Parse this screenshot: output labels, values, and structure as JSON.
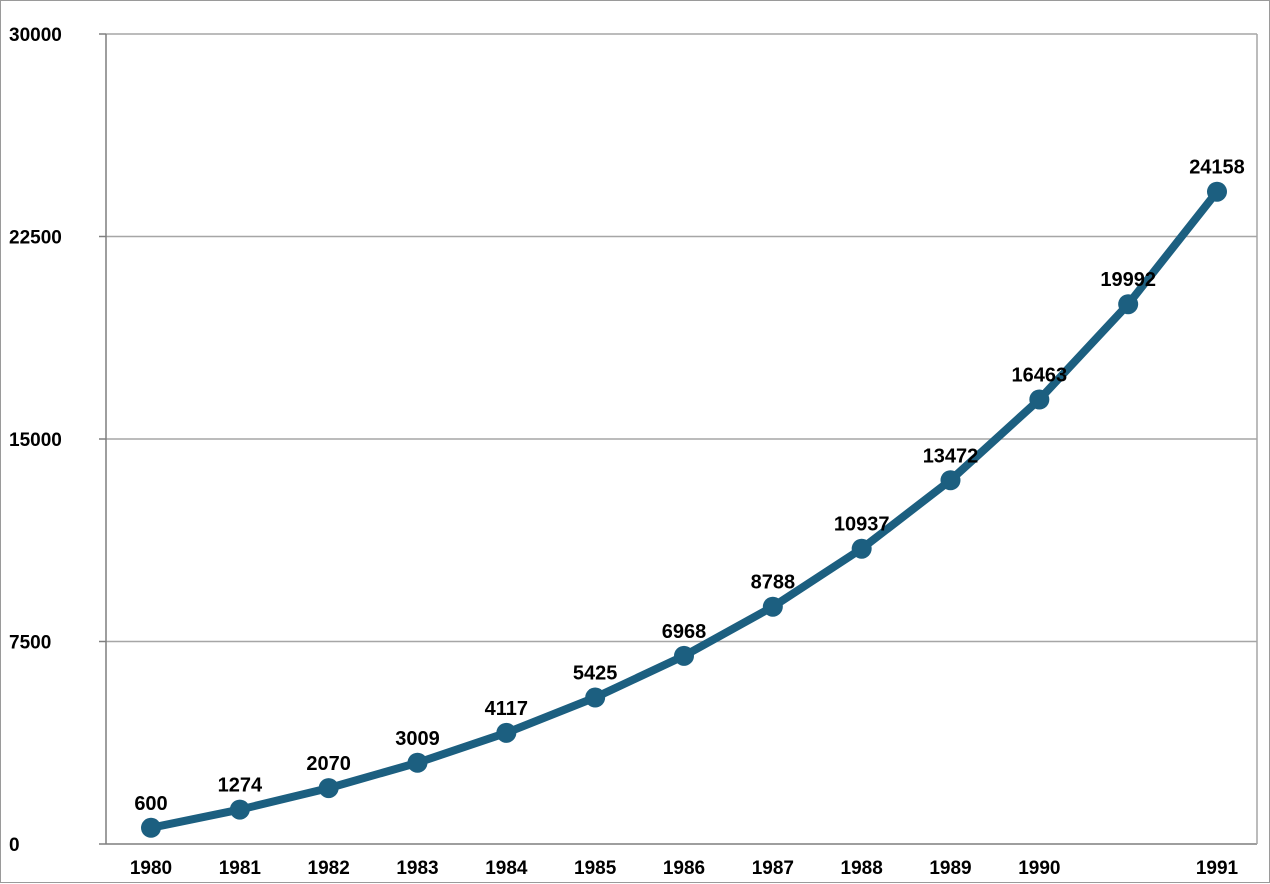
{
  "chart_data": {
    "type": "line",
    "title": "",
    "xlabel": "",
    "ylabel": "",
    "categories": [
      "1980",
      "1981",
      "1982",
      "1983",
      "1984",
      "1985",
      "1986",
      "1987",
      "1988",
      "1989",
      "1990",
      "",
      "1991"
    ],
    "series": [
      {
        "values": [
          600,
          1274,
          2070,
          3009,
          4117,
          5425,
          6968,
          8788,
          10937,
          13472,
          16463,
          19992,
          24158
        ],
        "color": "#1c5f80"
      }
    ],
    "ylim": [
      0,
      30000
    ],
    "yticks": [
      0,
      7500,
      15000,
      22500,
      30000
    ],
    "grid": "horizontal",
    "legend": "none",
    "data_labels": true
  },
  "colors": {
    "series": "#1c5f80",
    "grid": "#a6a6a6",
    "axis": "#7f7f7f",
    "text": "#000000"
  }
}
